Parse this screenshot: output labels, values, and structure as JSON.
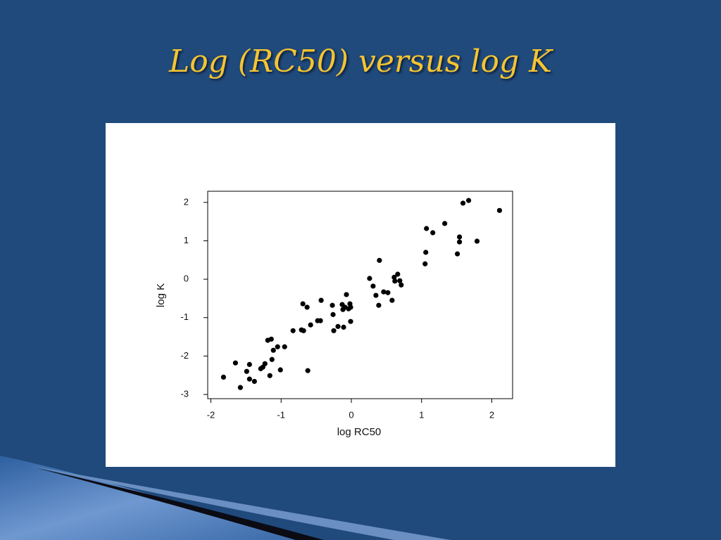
{
  "chart_data": {
    "type": "scatter",
    "title": "Log (RC50) versus log K",
    "x_label": "log RC50",
    "y_label": "log K",
    "color": "#000000",
    "grid": false,
    "x": [
      -1.82,
      -1.65,
      -1.58,
      -1.49,
      -1.45,
      -1.45,
      -1.38,
      -1.29,
      -1.26,
      -1.23,
      -1.19,
      -1.14,
      -1.16,
      -1.13,
      -1.11,
      -1.05,
      -1.01,
      -0.95,
      -0.83,
      -0.71,
      -0.68,
      -0.69,
      -0.63,
      -0.62,
      -0.58,
      -0.48,
      -0.44,
      -0.43,
      -0.27,
      -0.26,
      -0.25,
      -0.19,
      -0.13,
      -0.12,
      -0.11,
      -0.09,
      -0.07,
      -0.04,
      -0.02,
      -0.01,
      -0.01,
      0.26,
      0.31,
      0.35,
      0.39,
      0.4,
      0.46,
      0.52,
      0.58,
      0.61,
      0.62,
      0.66,
      0.69,
      0.71,
      1.05,
      1.06,
      1.07,
      1.16,
      1.33,
      1.51,
      1.54,
      1.54,
      1.59,
      1.67,
      1.79,
      2.11
    ],
    "values": [
      -2.55,
      -2.18,
      -2.82,
      -2.4,
      -2.22,
      -2.6,
      -2.66,
      -2.33,
      -2.29,
      -2.2,
      -1.59,
      -1.56,
      -2.51,
      -2.09,
      -1.85,
      -1.76,
      -2.36,
      -1.76,
      -1.34,
      -1.32,
      -1.34,
      -0.64,
      -0.73,
      -2.38,
      -1.19,
      -1.08,
      -1.08,
      -0.55,
      -0.68,
      -0.92,
      -1.34,
      -1.23,
      -0.66,
      -0.79,
      -1.25,
      -0.73,
      -0.4,
      -0.77,
      -0.64,
      -0.73,
      -1.1,
      0.02,
      -0.18,
      -0.42,
      -0.68,
      0.49,
      -0.33,
      -0.35,
      -0.55,
      0.05,
      -0.05,
      0.13,
      -0.04,
      -0.15,
      0.4,
      0.7,
      1.32,
      1.21,
      1.45,
      0.66,
      1.1,
      0.97,
      1.98,
      2.05,
      0.99,
      1.79
    ],
    "xlim": [
      -2.045,
      2.296
    ],
    "ylim": [
      -3.11,
      2.29
    ],
    "xticks": [
      -2,
      -1,
      0,
      1,
      2
    ],
    "yticks": [
      -3,
      -2,
      -1,
      0,
      1,
      2
    ]
  }
}
